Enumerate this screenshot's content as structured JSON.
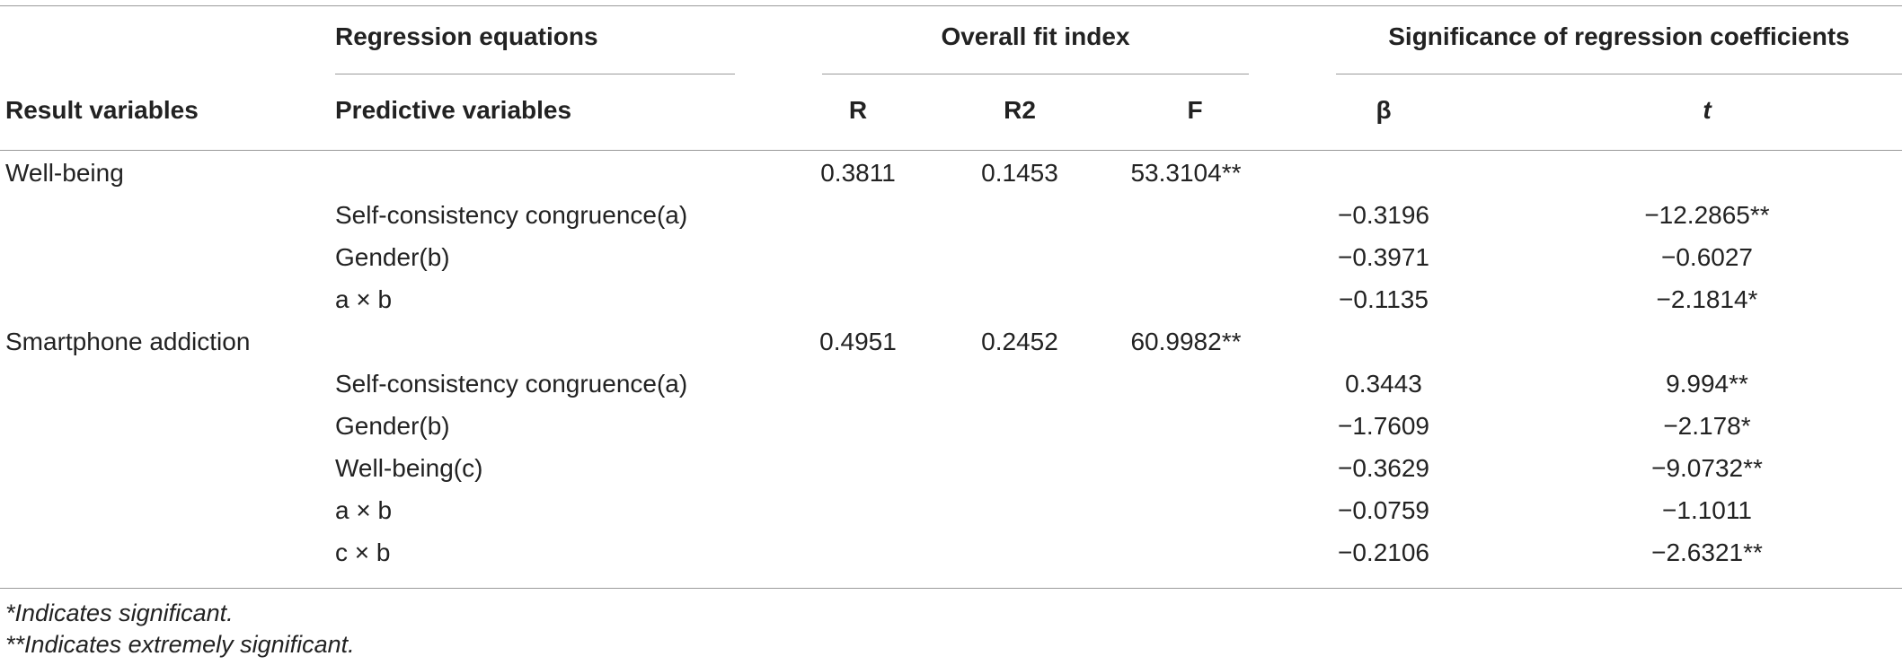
{
  "table": {
    "header": {
      "group_regression": "Regression equations",
      "group_fit": "Overall fit index",
      "group_significance": "Significance of regression coefficients",
      "col_result": "Result variables",
      "col_predictive": "Predictive variables",
      "col_r": "R",
      "col_r2": "R2",
      "col_f": "F",
      "col_beta": "β",
      "col_t": "t"
    },
    "rows": [
      {
        "result": "Well-being",
        "predictive": "",
        "r": "0.3811",
        "r2": "0.1453",
        "f": "53.3104**",
        "beta": "",
        "t": ""
      },
      {
        "result": "",
        "predictive": "Self-consistency congruence(a)",
        "r": "",
        "r2": "",
        "f": "",
        "beta": "−0.3196",
        "t": "−12.2865**"
      },
      {
        "result": "",
        "predictive": "Gender(b)",
        "r": "",
        "r2": "",
        "f": "",
        "beta": "−0.3971",
        "t": "−0.6027"
      },
      {
        "result": "",
        "predictive": "a × b",
        "r": "",
        "r2": "",
        "f": "",
        "beta": "−0.1135",
        "t": "−2.1814*"
      },
      {
        "result": "Smartphone addiction",
        "predictive": "",
        "r": "0.4951",
        "r2": "0.2452",
        "f": "60.9982**",
        "beta": "",
        "t": ""
      },
      {
        "result": "",
        "predictive": "Self-consistency congruence(a)",
        "r": "",
        "r2": "",
        "f": "",
        "beta": "0.3443",
        "t": "9.994**"
      },
      {
        "result": "",
        "predictive": "Gender(b)",
        "r": "",
        "r2": "",
        "f": "",
        "beta": "−1.7609",
        "t": "−2.178*"
      },
      {
        "result": "",
        "predictive": "Well-being(c)",
        "r": "",
        "r2": "",
        "f": "",
        "beta": "−0.3629",
        "t": "−9.0732**"
      },
      {
        "result": "",
        "predictive": "a × b",
        "r": "",
        "r2": "",
        "f": "",
        "beta": "−0.0759",
        "t": "−1.1011"
      },
      {
        "result": "",
        "predictive": "c × b",
        "r": "",
        "r2": "",
        "f": "",
        "beta": "−0.2106",
        "t": "−2.6321**"
      }
    ]
  },
  "footnotes": {
    "note1": "*Indicates significant.",
    "note2": "**Indicates extremely significant."
  }
}
